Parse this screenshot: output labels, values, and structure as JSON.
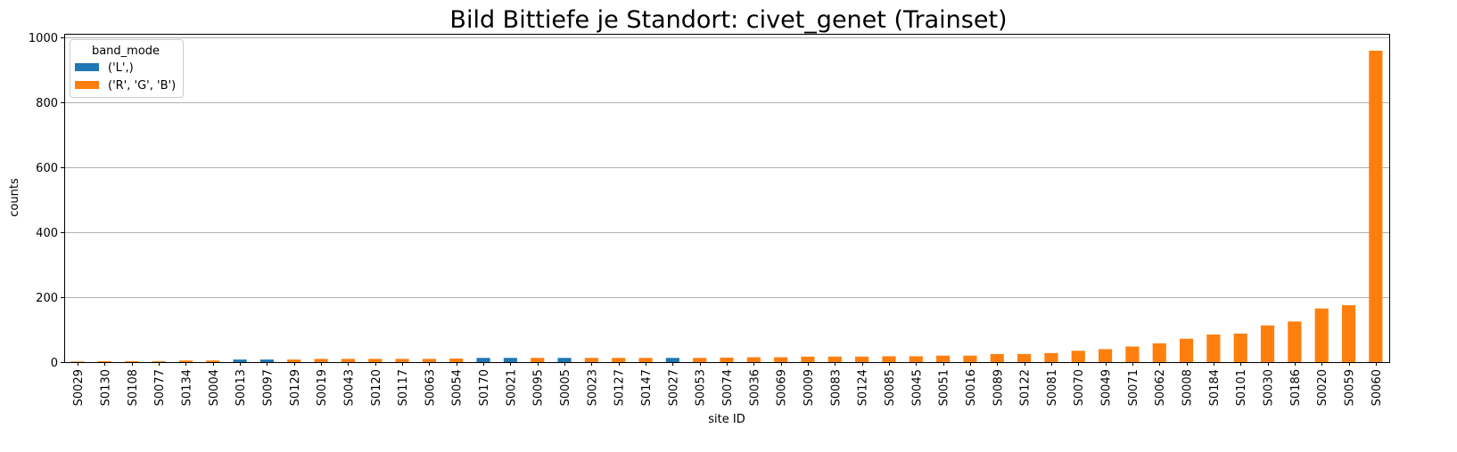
{
  "chart_data": {
    "type": "bar",
    "title": "Bild Bittiefe je Standort: civet_genet (Trainset)",
    "xlabel": "site ID",
    "ylabel": "counts",
    "ylim": [
      0,
      1010
    ],
    "yticks": [
      0,
      200,
      400,
      600,
      800,
      1000
    ],
    "grid": "y",
    "legend": {
      "title": "band_mode",
      "placement": "top-left"
    },
    "series": [
      {
        "name": "('L',)",
        "color": "#1f77b4"
      },
      {
        "name": "('R', 'G', 'B')",
        "color": "#ff7f0e"
      }
    ],
    "categories": [
      "S0029",
      "S0130",
      "S0108",
      "S0077",
      "S0134",
      "S0004",
      "S0013",
      "S0097",
      "S0129",
      "S0019",
      "S0043",
      "S0120",
      "S0117",
      "S0063",
      "S0054",
      "S0170",
      "S0021",
      "S0095",
      "S0005",
      "S0023",
      "S0127",
      "S0147",
      "S0027",
      "S0053",
      "S0074",
      "S0036",
      "S0069",
      "S0009",
      "S0083",
      "S0124",
      "S0085",
      "S0045",
      "S0051",
      "S0016",
      "S0089",
      "S0122",
      "S0081",
      "S0070",
      "S0049",
      "S0071",
      "S0062",
      "S0008",
      "S0184",
      "S0101",
      "S0030",
      "S0186",
      "S0020",
      "S0059",
      "S0060"
    ],
    "values": [
      2,
      3,
      3,
      3,
      5,
      5,
      8,
      8,
      8,
      10,
      10,
      10,
      10,
      10,
      11,
      13,
      13,
      13,
      13,
      13,
      13,
      13,
      13,
      13,
      14,
      15,
      15,
      17,
      17,
      17,
      18,
      18,
      20,
      20,
      25,
      25,
      28,
      35,
      40,
      48,
      58,
      72,
      85,
      88,
      113,
      125,
      165,
      175,
      958
    ],
    "bar_series": [
      1,
      1,
      1,
      1,
      1,
      1,
      0,
      0,
      1,
      1,
      1,
      1,
      1,
      1,
      1,
      0,
      0,
      1,
      0,
      1,
      1,
      1,
      0,
      1,
      1,
      1,
      1,
      1,
      1,
      1,
      1,
      1,
      1,
      1,
      1,
      1,
      1,
      1,
      1,
      1,
      1,
      1,
      1,
      1,
      1,
      1,
      1,
      1,
      1
    ]
  }
}
